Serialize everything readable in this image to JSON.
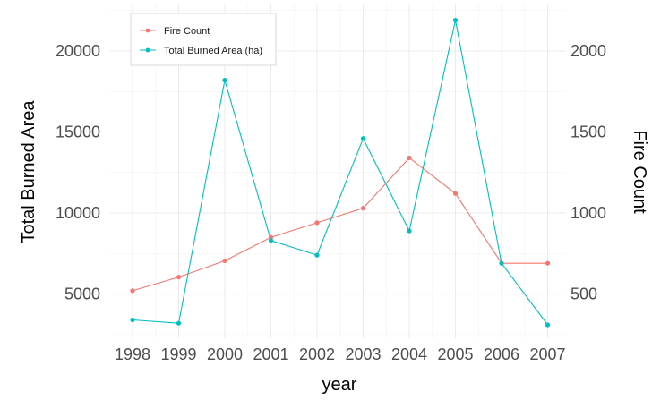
{
  "chart_data": {
    "type": "line",
    "x": [
      "1998",
      "1999",
      "2000",
      "2001",
      "2002",
      "2003",
      "2004",
      "2005",
      "2006",
      "2007"
    ],
    "series": [
      {
        "name": "Fire Count",
        "axis": "right",
        "color": "#F8766D",
        "values": [
          520,
          605,
          705,
          850,
          940,
          1030,
          1340,
          1120,
          690,
          690
        ]
      },
      {
        "name": "Total Burned Area (ha)",
        "axis": "left",
        "color": "#00BFC4",
        "values": [
          3400,
          3200,
          18200,
          8300,
          7400,
          14600,
          8900,
          21900,
          6900,
          3100
        ]
      }
    ],
    "xlabel": "year",
    "ylabel_left": "Total Burned Area",
    "ylabel_right": "Fire Count",
    "ylim_left": [
      2270,
      22870
    ],
    "ylim_right": [
      227,
      2287
    ],
    "yticks_left": [
      5000,
      10000,
      15000,
      20000
    ],
    "yticks_right": [
      500,
      1000,
      1500,
      2000
    ],
    "legend": {
      "position": "top-left",
      "entries": [
        "Fire Count",
        "Total Burned Area (ha)"
      ]
    },
    "grid": true
  }
}
